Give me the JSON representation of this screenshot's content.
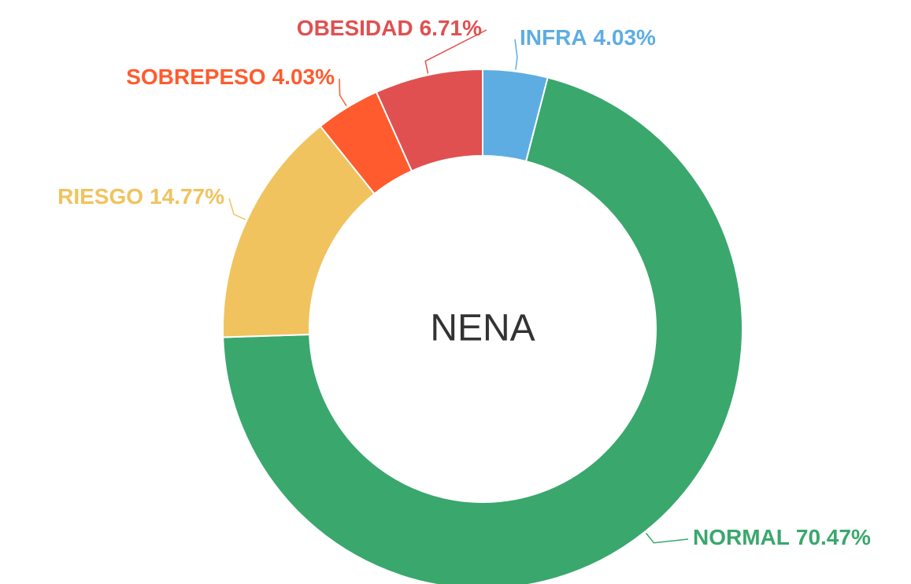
{
  "chart_data": {
    "type": "donut",
    "title": "NENA",
    "categories": [
      "INFRA",
      "NORMAL",
      "RIESGO",
      "SOBREPESO",
      "OBESIDAD"
    ],
    "values": [
      4.03,
      70.47,
      14.77,
      4.03,
      6.71
    ],
    "value_labels": [
      "4.03%",
      "70.47%",
      "14.77%",
      "4.03%",
      "6.71%"
    ],
    "colors": [
      "#5dade2",
      "#3aa76d",
      "#f0c35e",
      "#ff5b2e",
      "#e05050"
    ]
  }
}
